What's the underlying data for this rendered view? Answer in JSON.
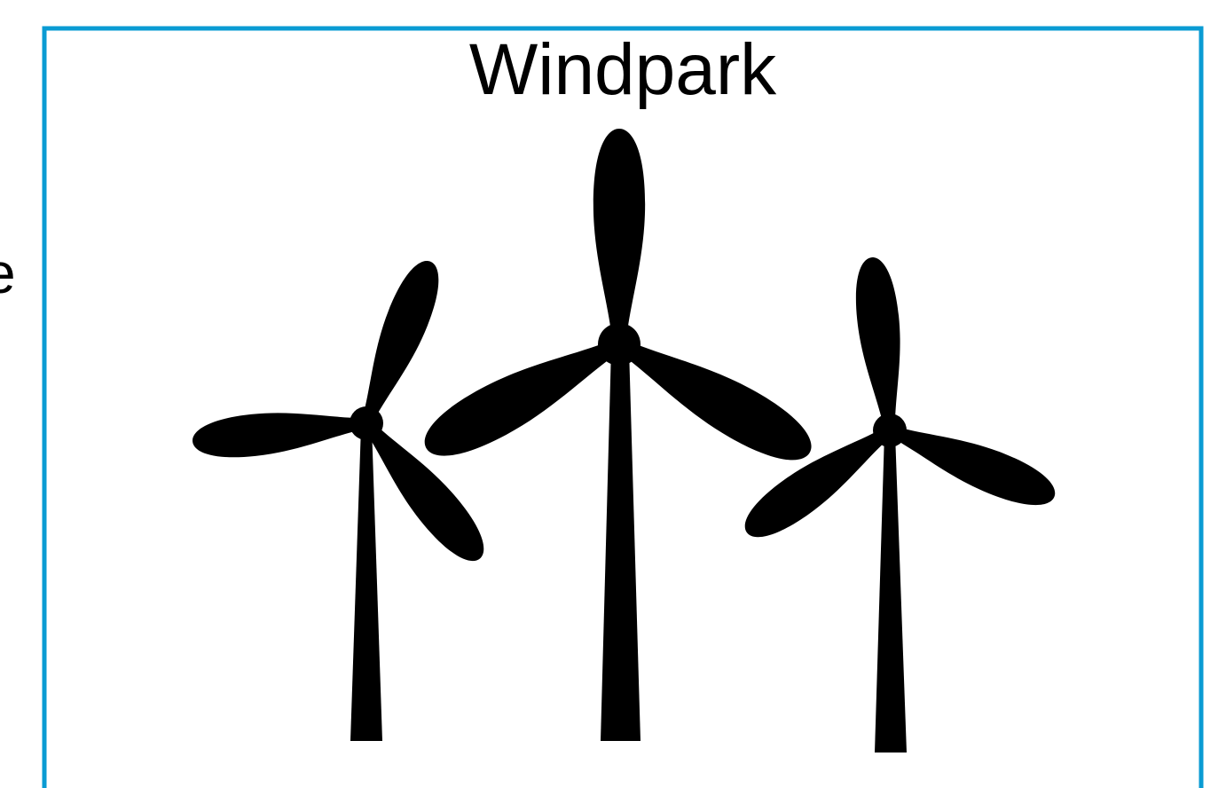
{
  "title": "Windpark",
  "side_text": "e"
}
